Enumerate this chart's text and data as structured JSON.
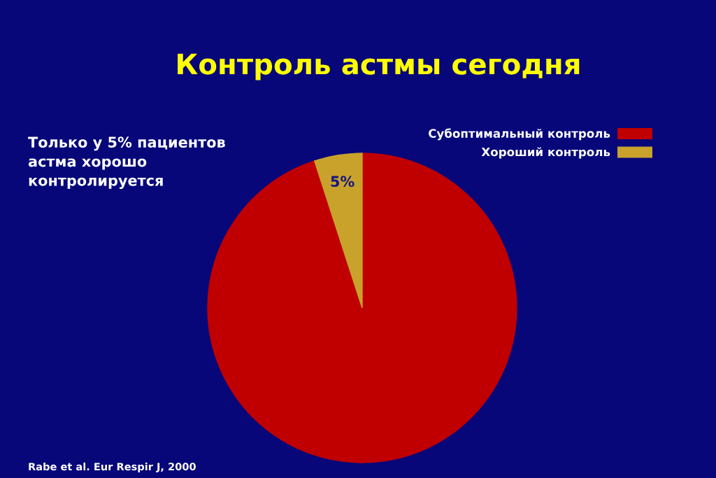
{
  "chart_data": {
    "type": "pie",
    "title": "Контроль астмы сегодня",
    "categories": [
      "Субоптимальный контроль",
      "Хороший контроль"
    ],
    "values": [
      95,
      5
    ],
    "colors": [
      "#c00000",
      "#c9a22c"
    ],
    "value_labels": [
      null,
      "5%"
    ],
    "legend": "top right",
    "annotations": [
      "Только у 5% пациентов\nастма хорошо\nконтролируется",
      "Rabe et al. Eur Respir J, 2000"
    ]
  }
}
